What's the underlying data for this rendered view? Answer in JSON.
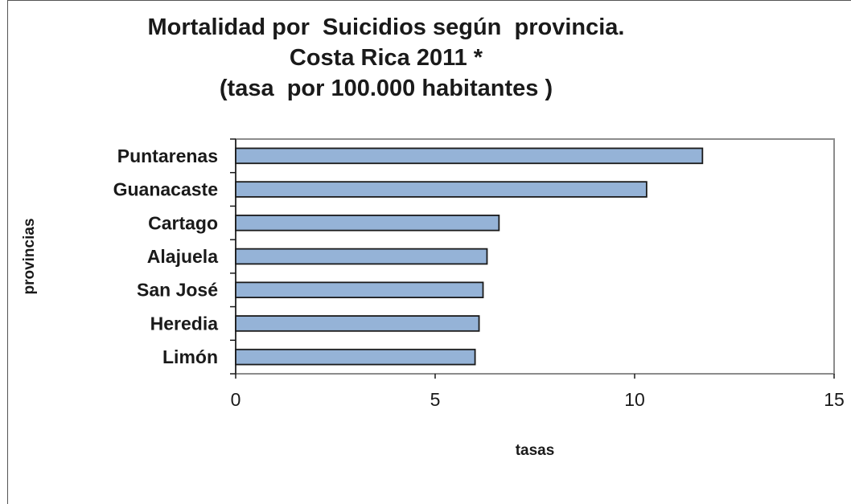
{
  "chart_data": {
    "type": "bar",
    "orientation": "horizontal",
    "title_lines": [
      "Mortalidad por  Suicidios según  provincia.",
      "Costa Rica 2011 *",
      "(tasa  por 100.000 habitantes )"
    ],
    "categories": [
      "Puntarenas",
      "Guanacaste",
      "Cartago",
      "Alajuela",
      "San José",
      "Heredia",
      "Limón "
    ],
    "values": [
      11.7,
      10.3,
      6.6,
      6.3,
      6.2,
      6.1,
      6.0
    ],
    "xlabel": "tasas",
    "ylabel": "provincias",
    "xlim": [
      0,
      15
    ],
    "xticks": [
      "0",
      "5",
      "10",
      "15"
    ],
    "bar_color": "#95b3d7",
    "bar_edge_color": "#1a1a1a",
    "grid": false,
    "legend": "none"
  }
}
